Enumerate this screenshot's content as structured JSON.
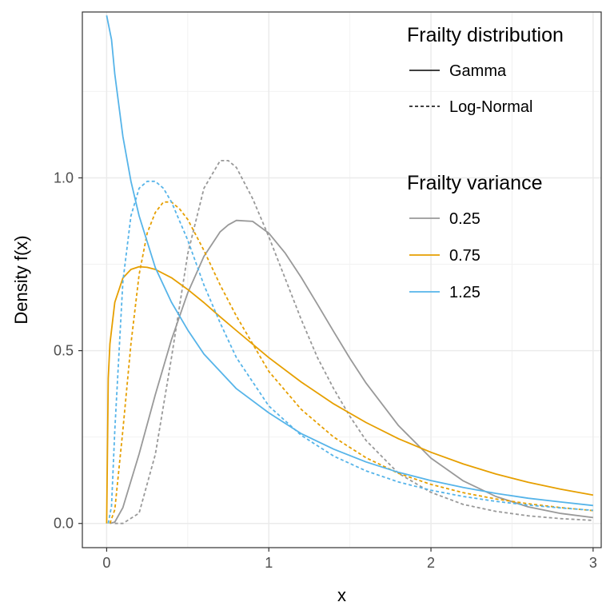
{
  "chart_data": {
    "type": "line",
    "xlabel": "x",
    "ylabel": "Density f(x)",
    "xlim": [
      -0.15,
      3.05
    ],
    "ylim": [
      -0.07,
      1.48
    ],
    "x_ticks": [
      0,
      1,
      2,
      3
    ],
    "x_tick_labels": [
      "0",
      "1",
      "2",
      "3"
    ],
    "y_ticks": [
      0.0,
      0.5,
      1.0
    ],
    "y_tick_labels": [
      "0.0",
      "0.5",
      "1.0"
    ],
    "grid": true,
    "legend_position": "top-right",
    "legends": {
      "linetype": {
        "title": "Frailty distribution",
        "entries": [
          {
            "label": "Gamma",
            "dash": "solid"
          },
          {
            "label": "Log-Normal",
            "dash": "dashed"
          }
        ]
      },
      "color": {
        "title": "Frailty variance",
        "entries": [
          {
            "label": "0.25",
            "color": "#999999"
          },
          {
            "label": "0.75",
            "color": "#E69F00"
          },
          {
            "label": "1.25",
            "color": "#56B4E9"
          }
        ]
      }
    },
    "series": [
      {
        "distribution": "Gamma",
        "variance": "0.25",
        "color": "#999999",
        "dash": "solid",
        "x": [
          0.02,
          0.05,
          0.1,
          0.2,
          0.3,
          0.4,
          0.5,
          0.6,
          0.7,
          0.75,
          0.8,
          0.9,
          1.0,
          1.1,
          1.2,
          1.3,
          1.4,
          1.5,
          1.6,
          1.8,
          2.0,
          2.2,
          2.4,
          2.6,
          2.8,
          3.0
        ],
        "y": [
          0.0,
          0.004,
          0.046,
          0.201,
          0.373,
          0.532,
          0.667,
          0.773,
          0.844,
          0.864,
          0.877,
          0.874,
          0.84,
          0.783,
          0.712,
          0.634,
          0.555,
          0.478,
          0.406,
          0.283,
          0.189,
          0.123,
          0.078,
          0.048,
          0.029,
          0.017
        ]
      },
      {
        "distribution": "Log-Normal",
        "variance": "0.25",
        "color": "#999999",
        "dash": "dashed",
        "x": [
          0.05,
          0.1,
          0.2,
          0.3,
          0.4,
          0.5,
          0.6,
          0.7,
          0.75,
          0.8,
          0.9,
          1.0,
          1.1,
          1.2,
          1.3,
          1.4,
          1.5,
          1.6,
          1.8,
          2.0,
          2.2,
          2.4,
          2.6,
          2.8,
          3.0
        ],
        "y": [
          0.0,
          0.0,
          0.03,
          0.2,
          0.48,
          0.78,
          0.97,
          1.05,
          1.05,
          1.03,
          0.94,
          0.83,
          0.71,
          0.59,
          0.48,
          0.39,
          0.31,
          0.24,
          0.145,
          0.09,
          0.055,
          0.035,
          0.022,
          0.014,
          0.009
        ]
      },
      {
        "distribution": "Gamma",
        "variance": "0.75",
        "color": "#E69F00",
        "dash": "solid",
        "x": [
          0.0,
          0.01,
          0.02,
          0.05,
          0.1,
          0.15,
          0.2,
          0.25,
          0.3,
          0.4,
          0.5,
          0.6,
          0.7,
          0.8,
          1.0,
          1.2,
          1.4,
          1.6,
          1.8,
          2.0,
          2.2,
          2.4,
          2.6,
          2.8,
          3.0
        ],
        "y": [
          0.0,
          0.42,
          0.52,
          0.64,
          0.71,
          0.735,
          0.743,
          0.741,
          0.735,
          0.711,
          0.677,
          0.639,
          0.598,
          0.558,
          0.48,
          0.409,
          0.346,
          0.292,
          0.245,
          0.206,
          0.172,
          0.143,
          0.119,
          0.099,
          0.082
        ]
      },
      {
        "distribution": "Log-Normal",
        "variance": "0.75",
        "color": "#E69F00",
        "dash": "dashed",
        "x": [
          0.02,
          0.05,
          0.1,
          0.15,
          0.2,
          0.25,
          0.3,
          0.35,
          0.4,
          0.45,
          0.5,
          0.6,
          0.7,
          0.8,
          1.0,
          1.2,
          1.4,
          1.6,
          1.8,
          2.0,
          2.2,
          2.4,
          2.6,
          2.8,
          3.0
        ],
        "y": [
          0.0,
          0.04,
          0.27,
          0.52,
          0.72,
          0.84,
          0.9,
          0.93,
          0.93,
          0.91,
          0.88,
          0.79,
          0.69,
          0.6,
          0.44,
          0.33,
          0.25,
          0.19,
          0.145,
          0.113,
          0.089,
          0.071,
          0.057,
          0.046,
          0.037
        ]
      },
      {
        "distribution": "Gamma",
        "variance": "1.25",
        "color": "#56B4E9",
        "dash": "solid",
        "x": [
          0.0,
          0.03,
          0.05,
          0.1,
          0.15,
          0.2,
          0.3,
          0.4,
          0.5,
          0.6,
          0.8,
          1.0,
          1.2,
          1.4,
          1.6,
          1.8,
          2.0,
          2.2,
          2.4,
          2.6,
          2.8,
          3.0
        ],
        "y": [
          1.47,
          1.4,
          1.3,
          1.12,
          0.99,
          0.89,
          0.74,
          0.64,
          0.56,
          0.49,
          0.39,
          0.32,
          0.26,
          0.215,
          0.178,
          0.148,
          0.124,
          0.104,
          0.087,
          0.073,
          0.062,
          0.052
        ]
      },
      {
        "distribution": "Log-Normal",
        "variance": "1.25",
        "color": "#56B4E9",
        "dash": "dashed",
        "x": [
          0.01,
          0.03,
          0.05,
          0.1,
          0.15,
          0.2,
          0.25,
          0.3,
          0.35,
          0.4,
          0.5,
          0.6,
          0.7,
          0.8,
          1.0,
          1.2,
          1.4,
          1.6,
          1.8,
          2.0,
          2.2,
          2.4,
          2.6,
          2.8,
          3.0
        ],
        "y": [
          0.0,
          0.05,
          0.27,
          0.7,
          0.89,
          0.97,
          0.99,
          0.99,
          0.97,
          0.93,
          0.82,
          0.69,
          0.58,
          0.48,
          0.34,
          0.255,
          0.195,
          0.152,
          0.12,
          0.096,
          0.078,
          0.064,
          0.053,
          0.045,
          0.038
        ]
      }
    ]
  }
}
